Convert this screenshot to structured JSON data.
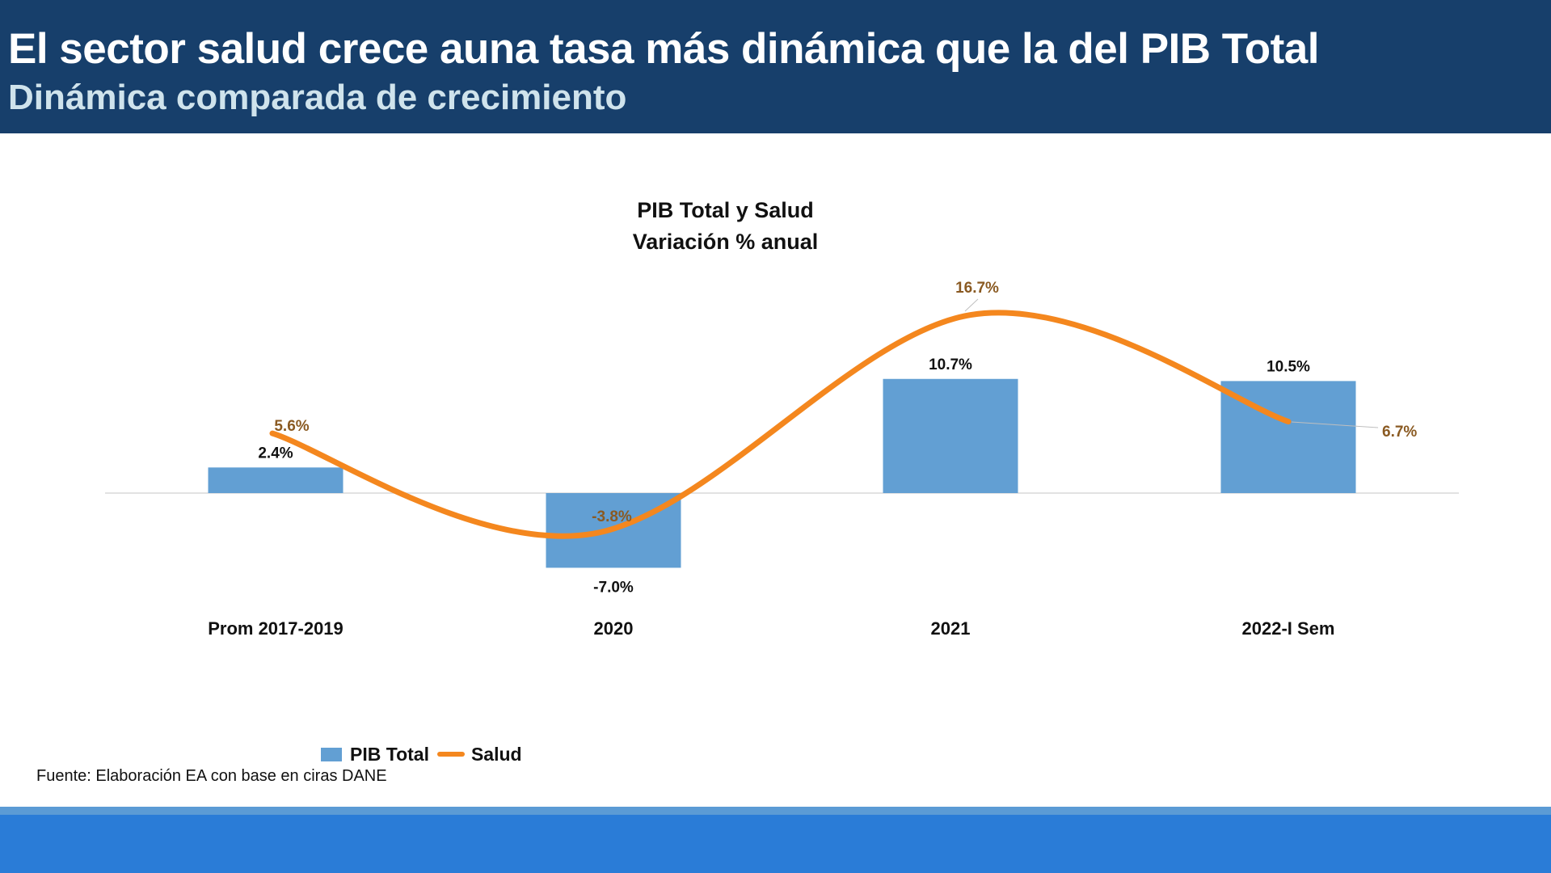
{
  "header": {
    "title": "El sector salud crece auna tasa más dinámica que la del PIB Total",
    "subtitle": "Dinámica comparada de crecimiento"
  },
  "source": "Fuente: Elaboración EA con base en ciras DANE",
  "colors": {
    "header_bg": "#173f6b",
    "bar": "#629fd3",
    "line": "#f4871e",
    "line_label": "#8a5a22",
    "footer": "#2a7cd7"
  },
  "chart_data": {
    "type": "bar",
    "title": "PIB Total y Salud",
    "subtitle": "Variación % anual",
    "xlabel": "",
    "ylabel": "",
    "categories": [
      "Prom 2017-2019",
      "2020",
      "2021",
      "2022-I Sem"
    ],
    "series": [
      {
        "name": "PIB Total",
        "type": "bar",
        "values": [
          2.4,
          -7.0,
          10.7,
          10.5
        ],
        "labels": [
          "2.4%",
          "-7.0%",
          "10.7%",
          "10.5%"
        ]
      },
      {
        "name": "Salud",
        "type": "line",
        "smooth": true,
        "values": [
          5.6,
          -3.8,
          16.7,
          6.7
        ],
        "labels": [
          "5.6%",
          "-3.8%",
          "16.7%",
          "6.7%"
        ]
      }
    ],
    "legend": "bottom-left",
    "grid": false
  }
}
